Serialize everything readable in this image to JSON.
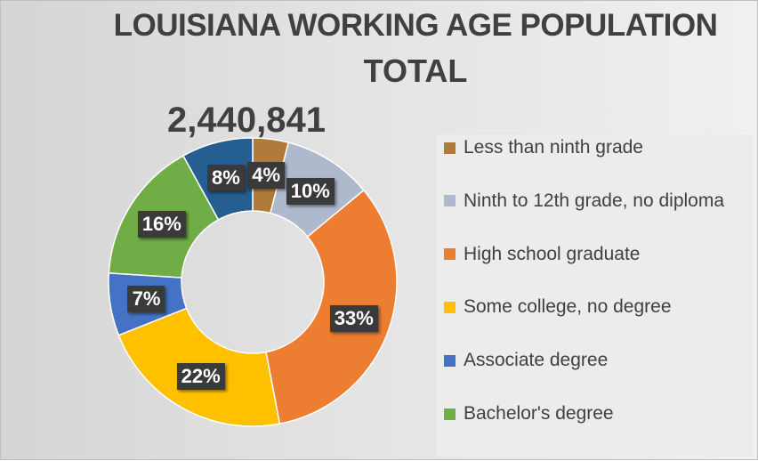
{
  "title_lines": [
    "LOUISIANA WORKING AGE POPULATION",
    "TOTAL",
    "2,440,841"
  ],
  "chart_data": {
    "type": "pie",
    "variant": "donut",
    "categories": [
      "Less than ninth grade",
      "Ninth to 12th grade, no diploma",
      "High school graduate",
      "Some college, no degree",
      "Associate degree",
      "Bachelor's degree",
      ""
    ],
    "values": [
      4,
      10,
      33,
      22,
      7,
      16,
      8
    ],
    "data_labels": [
      "4%",
      "10%",
      "33%",
      "22%",
      "7%",
      "16%",
      "8%"
    ],
    "colors": [
      "#B07A3B",
      "#AEB9CD",
      "#ED7D31",
      "#FFC000",
      "#4472C4",
      "#70AD47",
      "#255E91"
    ],
    "legend_entries": [
      {
        "label": "Less than ninth grade",
        "color": "#B07A3B"
      },
      {
        "label": "Ninth to 12th grade, no diploma",
        "color": "#AEB9CD"
      },
      {
        "label": "High school graduate",
        "color": "#ED7D31"
      },
      {
        "label": "Some college, no degree",
        "color": "#FFC000"
      },
      {
        "label": "Associate degree",
        "color": "#4472C4"
      },
      {
        "label": "Bachelor's degree",
        "color": "#70AD47"
      }
    ],
    "legend_position": "right",
    "start_angle_deg": 0,
    "direction": "clockwise"
  }
}
